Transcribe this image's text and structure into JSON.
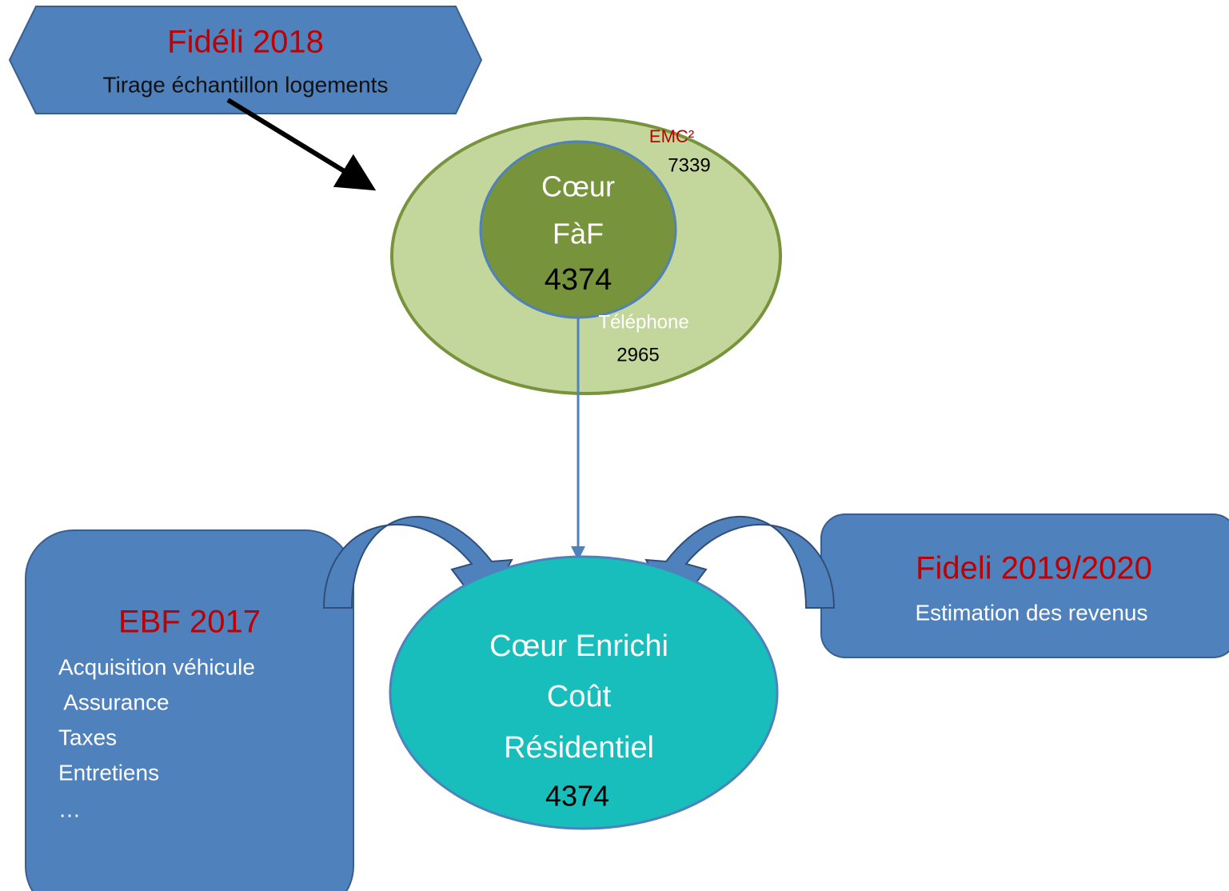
{
  "source_top": {
    "title": "Fidéli 2018",
    "subtitle": "Tirage échantillon logements"
  },
  "core": {
    "outer_label": "EMC²",
    "outer_count": "7339",
    "phone_label": "Téléphone",
    "phone_count": "2965",
    "inner_lines": [
      "Cœur",
      "FàF"
    ],
    "inner_count": "4374"
  },
  "enriched": {
    "lines": [
      "Cœur Enrichi",
      "Coût",
      "Résidentiel"
    ],
    "count": "4374"
  },
  "source_left": {
    "title": "EBF 2017",
    "items": [
      "Acquisition véhicule",
      " Assurance",
      "Taxes",
      "Entretiens",
      "…"
    ]
  },
  "source_right": {
    "title": "Fideli 2019/2020",
    "subtitle": "Estimation des revenus"
  }
}
